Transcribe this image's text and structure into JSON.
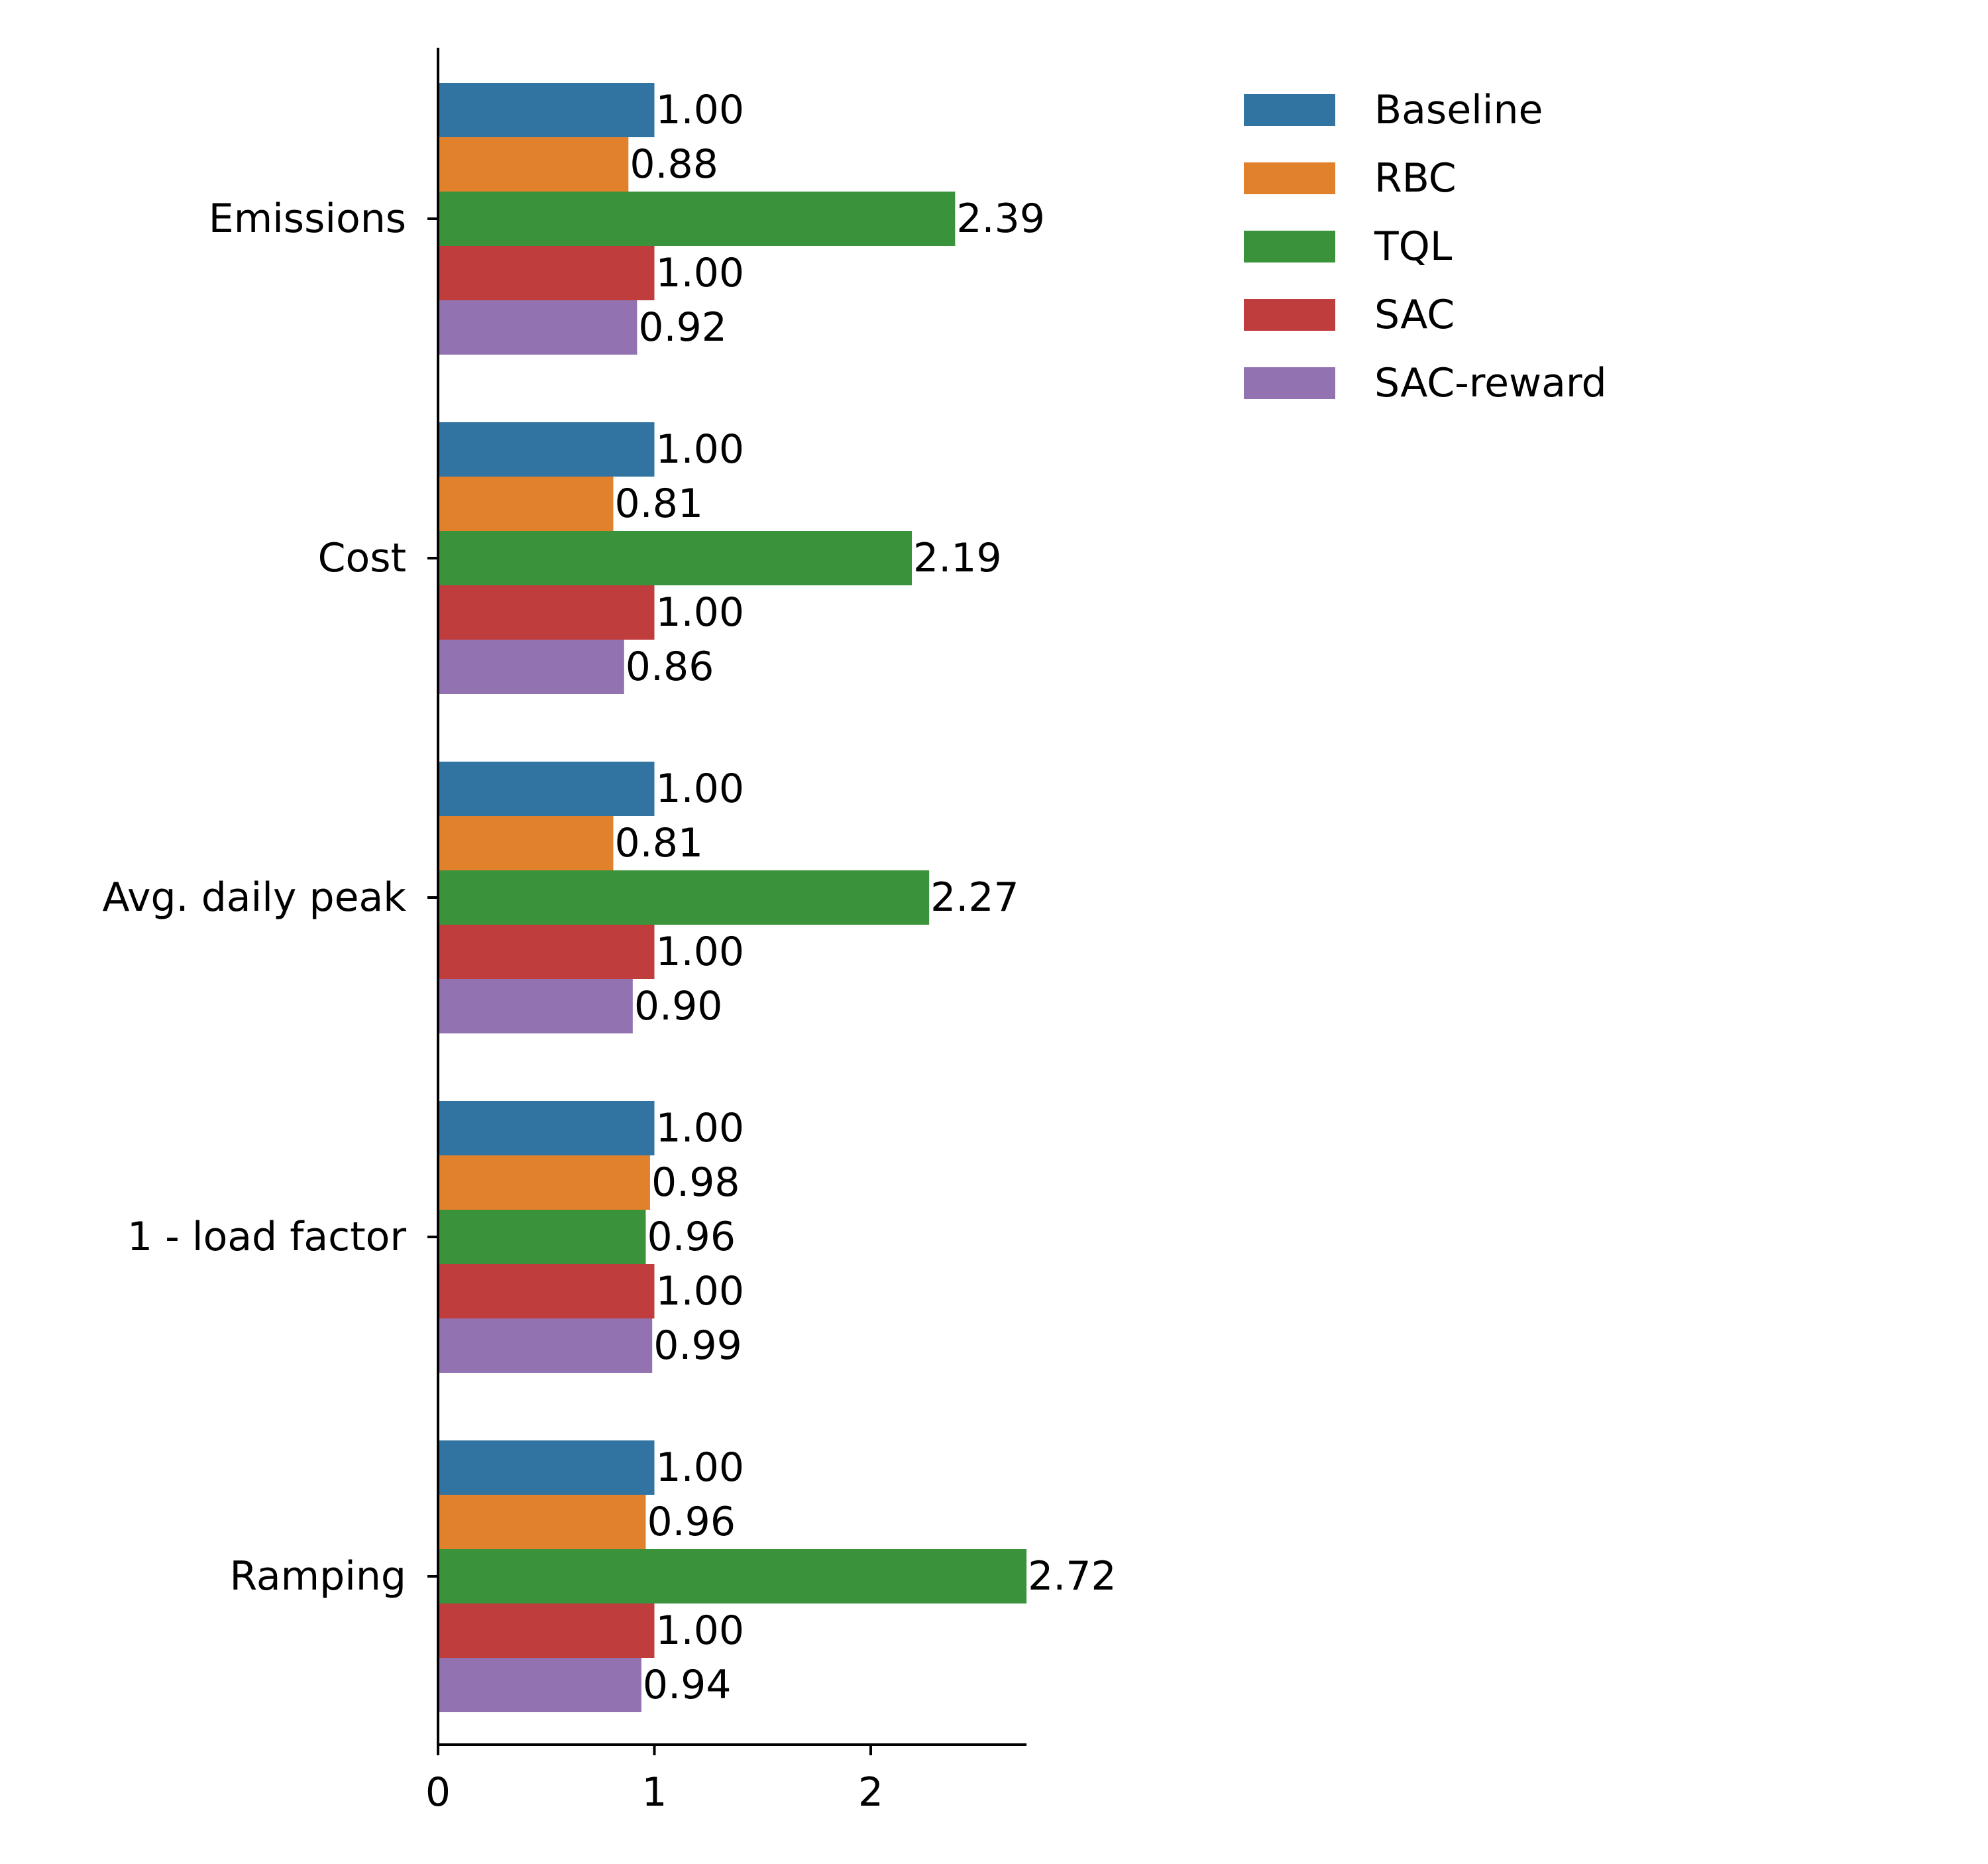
{
  "chart_data": {
    "type": "bar",
    "orientation": "horizontal",
    "categories": [
      "Emissions",
      "Cost",
      "Avg. daily peak",
      "1 - load factor",
      "Ramping"
    ],
    "series": [
      {
        "name": "Baseline",
        "color": "#3274a1",
        "values": [
          1.0,
          1.0,
          1.0,
          1.0,
          1.0
        ],
        "labels": [
          "1.00",
          "1.00",
          "1.00",
          "1.00",
          "1.00"
        ]
      },
      {
        "name": "RBC",
        "color": "#e1812c",
        "values": [
          0.88,
          0.81,
          0.81,
          0.98,
          0.96
        ],
        "labels": [
          "0.88",
          "0.81",
          "0.81",
          "0.98",
          "0.96"
        ]
      },
      {
        "name": "TQL",
        "color": "#3a923a",
        "values": [
          2.39,
          2.19,
          2.27,
          0.96,
          2.72
        ],
        "labels": [
          "2.39",
          "2.19",
          "2.27",
          "0.96",
          "2.72"
        ]
      },
      {
        "name": "SAC",
        "color": "#c03d3e",
        "values": [
          1.0,
          1.0,
          1.0,
          1.0,
          1.0
        ],
        "labels": [
          "1.00",
          "1.00",
          "1.00",
          "1.00",
          "1.00"
        ]
      },
      {
        "name": "SAC-reward",
        "color": "#9372b2",
        "values": [
          0.92,
          0.86,
          0.9,
          0.99,
          0.94
        ],
        "labels": [
          "0.92",
          "0.86",
          "0.90",
          "0.99",
          "0.94"
        ]
      }
    ],
    "xticks": [
      "0",
      "1",
      "2"
    ],
    "xlim": [
      0,
      2.72
    ],
    "xlabel": "",
    "ylabel": "",
    "title": "",
    "grid": false,
    "legend_position": "upper-right"
  }
}
